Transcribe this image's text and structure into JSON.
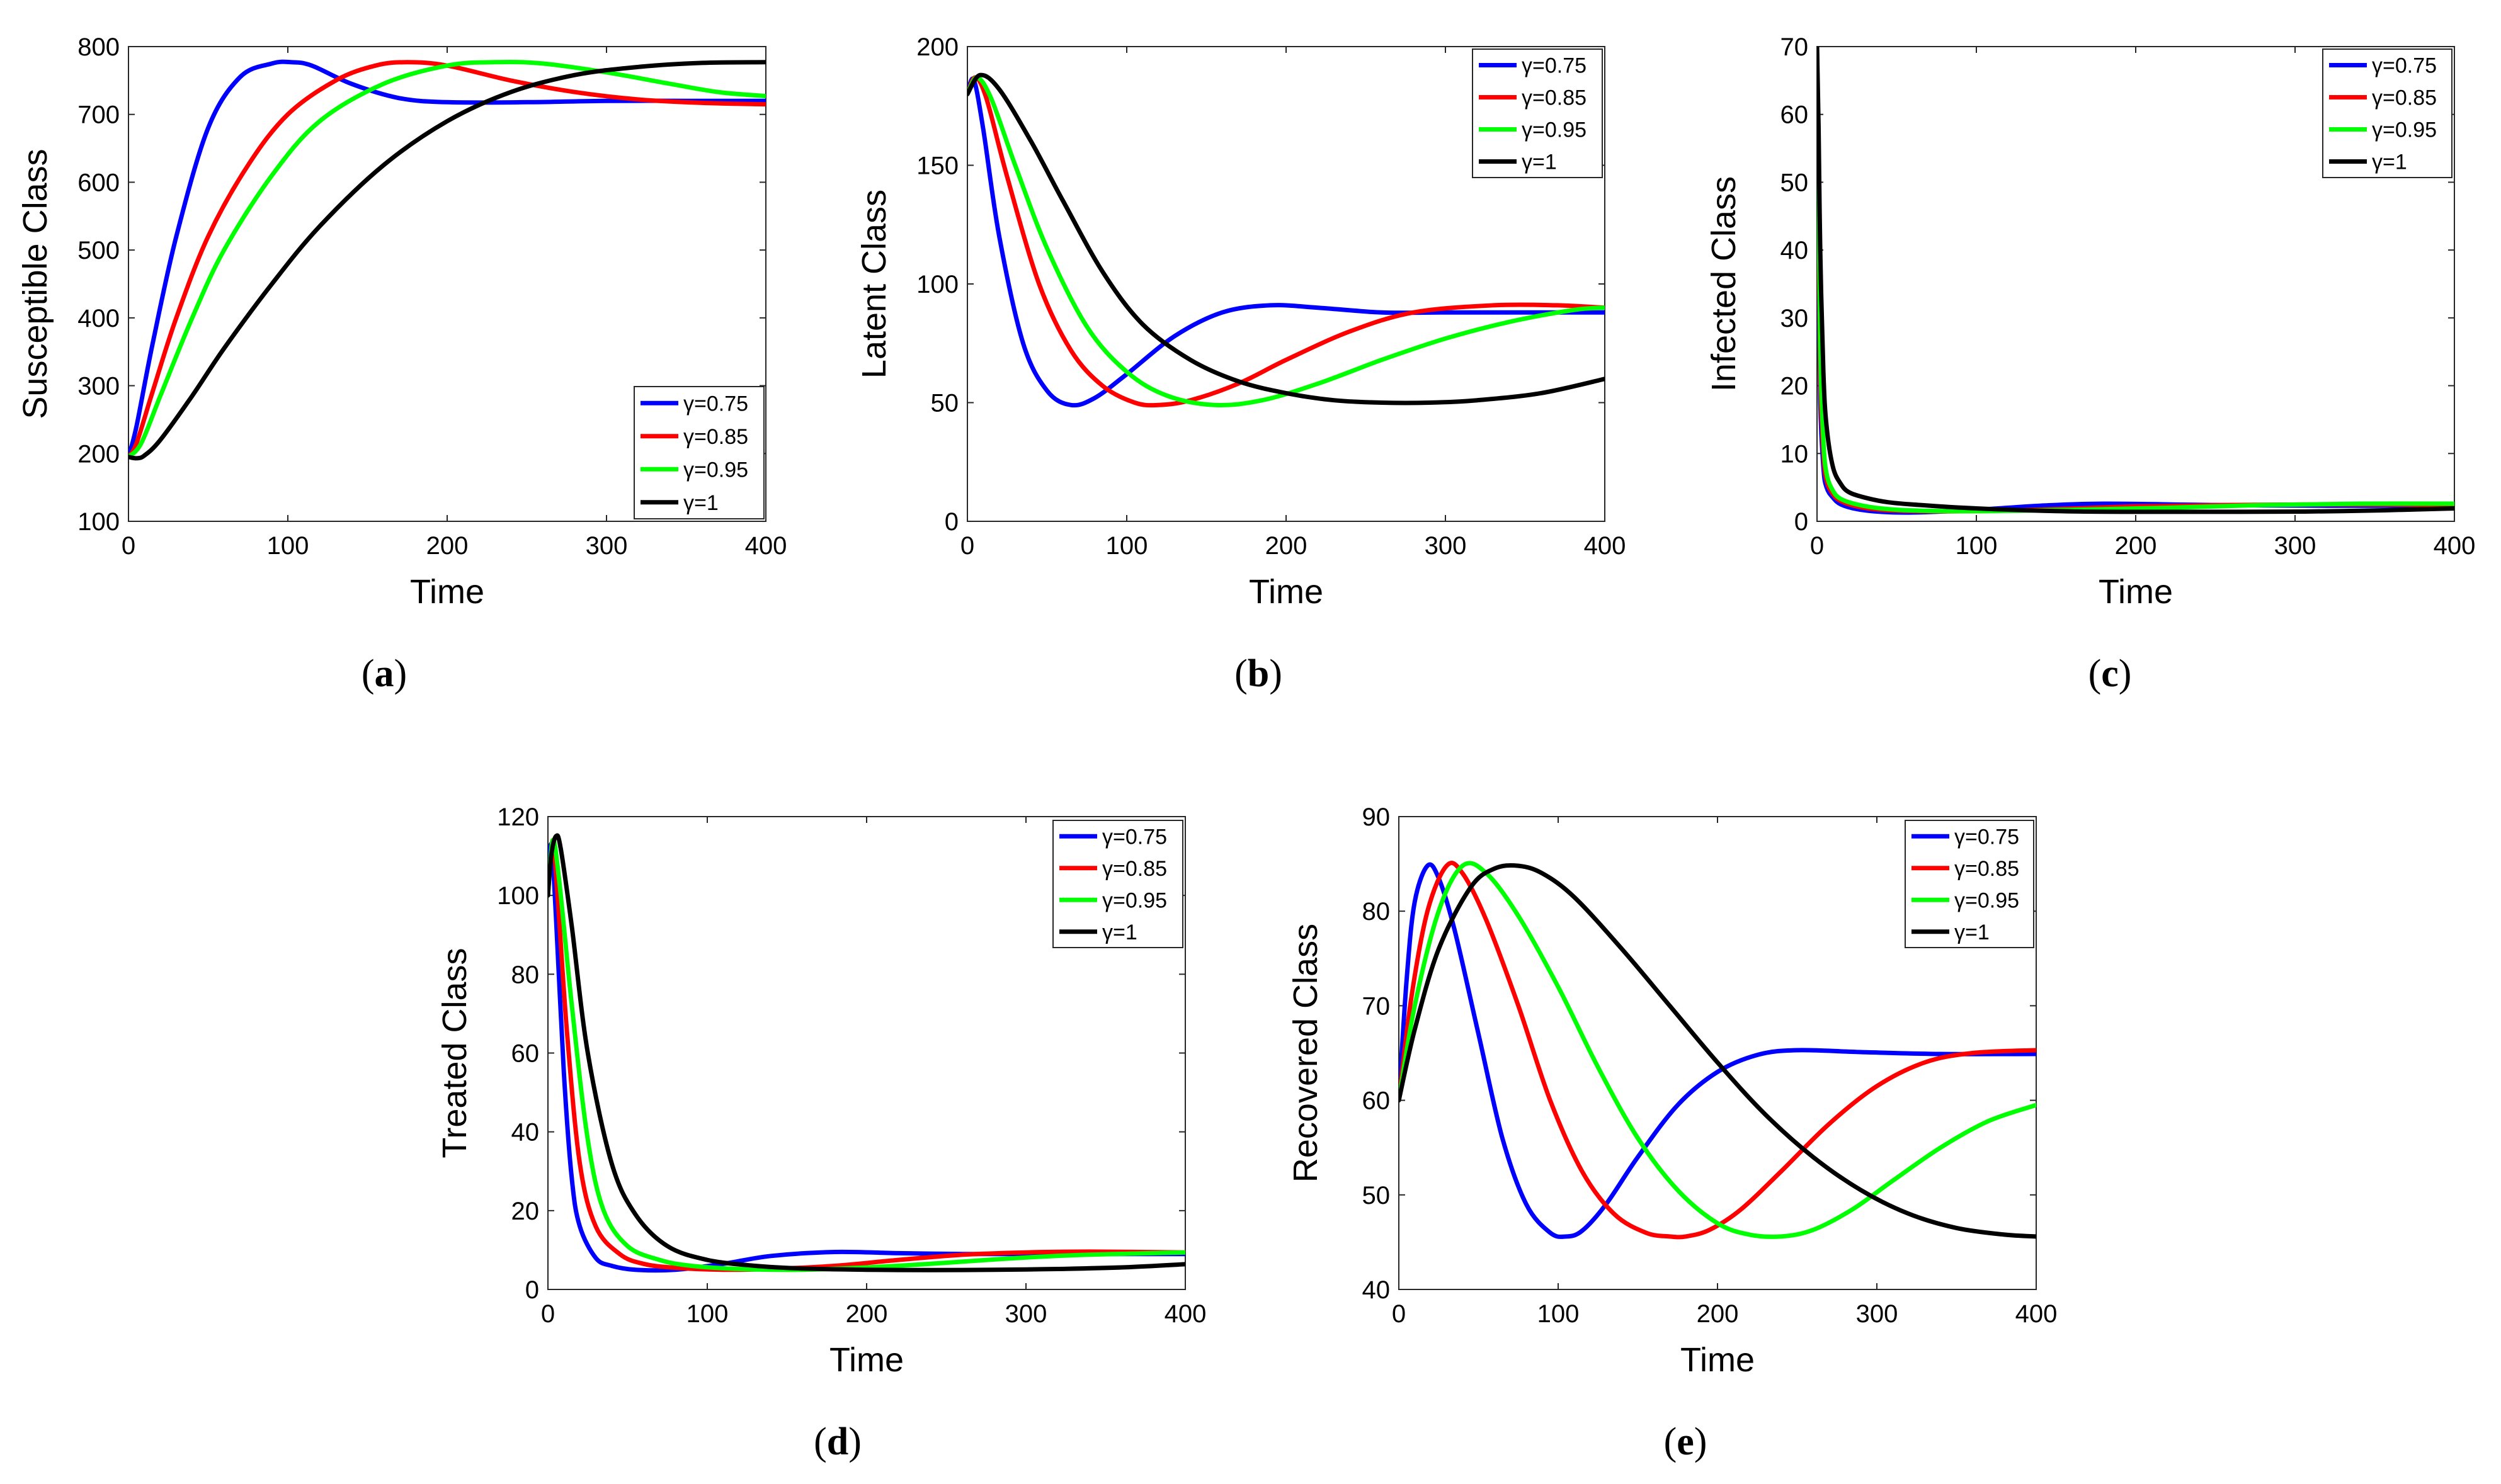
{
  "figure": {
    "panels": [
      "a",
      "b",
      "c",
      "d",
      "e"
    ]
  },
  "chart_data": [
    {
      "id": "a",
      "type": "line",
      "caption_letter": "a",
      "xlabel": "Time",
      "ylabel": "Susceptible Class",
      "xlim": [
        0,
        400
      ],
      "ylim": [
        100,
        800
      ],
      "xticks": [
        0,
        100,
        200,
        300,
        400
      ],
      "yticks": [
        100,
        200,
        300,
        400,
        500,
        600,
        700,
        800
      ],
      "legend_position": "bottom-right",
      "series": [
        {
          "name": "γ=0.75",
          "color": "#0000ff",
          "x": [
            0,
            5,
            15,
            30,
            50,
            70,
            90,
            102,
            115,
            140,
            170,
            200,
            250,
            300,
            350,
            400
          ],
          "y": [
            195,
            240,
            360,
            520,
            680,
            755,
            775,
            777,
            772,
            745,
            724,
            718,
            718,
            720,
            720,
            720
          ]
        },
        {
          "name": "γ=0.85",
          "color": "#ff0000",
          "x": [
            0,
            5,
            15,
            30,
            50,
            75,
            100,
            130,
            155,
            175,
            200,
            240,
            280,
            320,
            360,
            400
          ],
          "y": [
            195,
            215,
            290,
            400,
            520,
            625,
            700,
            750,
            772,
            777,
            772,
            750,
            733,
            722,
            717,
            715
          ]
        },
        {
          "name": "γ=0.95",
          "color": "#00ff00",
          "x": [
            0,
            8,
            20,
            40,
            60,
            90,
            120,
            160,
            200,
            230,
            260,
            300,
            340,
            370,
            400
          ],
          "y": [
            195,
            215,
            285,
            400,
            500,
            610,
            690,
            745,
            772,
            777,
            775,
            762,
            745,
            733,
            727
          ]
        },
        {
          "name": "γ=1",
          "color": "#000000",
          "x": [
            0,
            5,
            10,
            20,
            40,
            60,
            90,
            120,
            160,
            200,
            240,
            280,
            320,
            360,
            400
          ],
          "y": [
            195,
            193,
            197,
            220,
            285,
            355,
            450,
            535,
            625,
            690,
            733,
            758,
            770,
            776,
            777
          ]
        }
      ]
    },
    {
      "id": "b",
      "type": "line",
      "caption_letter": "b",
      "xlabel": "Time",
      "ylabel": "Latent Class",
      "xlim": [
        0,
        400
      ],
      "ylim": [
        0,
        200
      ],
      "xticks": [
        0,
        100,
        200,
        300,
        400
      ],
      "yticks": [
        0,
        50,
        100,
        150,
        200
      ],
      "legend_position": "top-right",
      "series": [
        {
          "name": "γ=0.75",
          "color": "#0000ff",
          "x": [
            0,
            4,
            10,
            20,
            35,
            50,
            65,
            80,
            100,
            130,
            160,
            190,
            220,
            260,
            300,
            340,
            400
          ],
          "y": [
            180,
            186,
            165,
            120,
            75,
            55,
            49,
            52,
            62,
            78,
            88,
            91,
            90,
            88,
            88,
            88,
            88
          ]
        },
        {
          "name": "γ=0.85",
          "color": "#ff0000",
          "x": [
            0,
            5,
            12,
            25,
            45,
            65,
            85,
            105,
            120,
            140,
            170,
            200,
            240,
            280,
            330,
            370,
            400
          ],
          "y": [
            180,
            187,
            178,
            145,
            100,
            72,
            57,
            50,
            49,
            51,
            58,
            68,
            80,
            88,
            91,
            91,
            90
          ]
        },
        {
          "name": "γ=0.95",
          "color": "#00ff00",
          "x": [
            0,
            6,
            15,
            30,
            50,
            75,
            100,
            125,
            155,
            185,
            220,
            260,
            300,
            340,
            380,
            400
          ],
          "y": [
            180,
            187,
            178,
            150,
            115,
            82,
            63,
            53,
            49,
            51,
            58,
            68,
            77,
            84,
            89,
            90
          ]
        },
        {
          "name": "γ=1",
          "color": "#000000",
          "x": [
            0,
            8,
            20,
            40,
            60,
            85,
            110,
            140,
            170,
            200,
            230,
            260,
            290,
            320,
            360,
            400
          ],
          "y": [
            180,
            188,
            182,
            160,
            135,
            105,
            83,
            68,
            59,
            54,
            51,
            50,
            50,
            51,
            54,
            60
          ]
        }
      ]
    },
    {
      "id": "c",
      "type": "line",
      "caption_letter": "c",
      "xlabel": "Time",
      "ylabel": "Infected Class",
      "xlim": [
        0,
        400
      ],
      "ylim": [
        0,
        70
      ],
      "xticks": [
        0,
        100,
        200,
        300,
        400
      ],
      "yticks": [
        0,
        10,
        20,
        30,
        40,
        50,
        60,
        70
      ],
      "legend_position": "top-right",
      "series": [
        {
          "name": "γ=0.75",
          "color": "#0000ff",
          "x": [
            0,
            1,
            2,
            4,
            6,
            10,
            15,
            25,
            40,
            60,
            100,
            140,
            180,
            250,
            320,
            400
          ],
          "y": [
            70,
            40,
            18,
            8,
            5,
            3.5,
            2.5,
            1.8,
            1.4,
            1.3,
            1.7,
            2.3,
            2.6,
            2.4,
            2.3,
            2.3
          ]
        },
        {
          "name": "γ=0.85",
          "color": "#ff0000",
          "x": [
            0,
            1,
            2,
            4,
            6,
            10,
            15,
            25,
            40,
            60,
            100,
            150,
            200,
            260,
            330,
            400
          ],
          "y": [
            70,
            45,
            22,
            10,
            6,
            4,
            3,
            2.2,
            1.7,
            1.5,
            1.5,
            1.8,
            2.2,
            2.4,
            2.5,
            2.4
          ]
        },
        {
          "name": "γ=0.95",
          "color": "#00ff00",
          "x": [
            0,
            1,
            2,
            4,
            6,
            10,
            15,
            25,
            40,
            60,
            100,
            160,
            220,
            280,
            340,
            400
          ],
          "y": [
            70,
            50,
            26,
            12,
            7,
            4.5,
            3.3,
            2.5,
            1.9,
            1.6,
            1.5,
            1.7,
            2.0,
            2.4,
            2.6,
            2.6
          ]
        },
        {
          "name": "γ=1",
          "color": "#000000",
          "x": [
            0,
            1,
            2,
            4,
            6,
            10,
            15,
            20,
            30,
            45,
            65,
            100,
            150,
            200,
            260,
            330,
            400
          ],
          "y": [
            70,
            58,
            40,
            22,
            14,
            8,
            5.5,
            4.3,
            3.5,
            2.8,
            2.4,
            1.9,
            1.5,
            1.4,
            1.4,
            1.5,
            1.9
          ]
        }
      ]
    },
    {
      "id": "d",
      "type": "line",
      "caption_letter": "d",
      "xlabel": "Time",
      "ylabel": "Treated Class",
      "xlim": [
        0,
        400
      ],
      "ylim": [
        0,
        120
      ],
      "xticks": [
        0,
        100,
        200,
        300,
        400
      ],
      "yticks": [
        0,
        20,
        40,
        60,
        80,
        100,
        120
      ],
      "legend_position": "top-right",
      "series": [
        {
          "name": "γ=0.75",
          "color": "#0000ff",
          "x": [
            0,
            2,
            5,
            10,
            15,
            20,
            30,
            40,
            55,
            80,
            110,
            140,
            180,
            220,
            260,
            300,
            400
          ],
          "y": [
            100,
            113,
            95,
            55,
            28,
            16,
            8,
            6,
            5,
            5,
            6.5,
            8.5,
            9.5,
            9.2,
            9,
            9,
            9
          ]
        },
        {
          "name": "γ=0.85",
          "color": "#ff0000",
          "x": [
            0,
            3,
            6,
            12,
            20,
            30,
            45,
            60,
            80,
            110,
            140,
            180,
            220,
            260,
            300,
            340,
            400
          ],
          "y": [
            100,
            114,
            100,
            65,
            32,
            16,
            9,
            6.5,
            5.5,
            5,
            5.2,
            6,
            7.5,
            8.8,
            9.4,
            9.6,
            9.4
          ]
        },
        {
          "name": "γ=0.95",
          "color": "#00ff00",
          "x": [
            0,
            3,
            7,
            15,
            25,
            35,
            50,
            70,
            90,
            120,
            160,
            200,
            240,
            280,
            330,
            400
          ],
          "y": [
            100,
            114,
            104,
            72,
            38,
            20,
            11,
            7.5,
            6,
            5.2,
            5,
            5.6,
            6.5,
            7.6,
            8.7,
            9.4
          ]
        },
        {
          "name": "γ=1",
          "color": "#000000",
          "x": [
            0,
            2,
            5,
            8,
            15,
            25,
            40,
            55,
            75,
            100,
            130,
            160,
            200,
            240,
            280,
            320,
            360,
            400
          ],
          "y": [
            100,
            110,
            115,
            112,
            92,
            60,
            32,
            19,
            11,
            7.5,
            6,
            5.3,
            5,
            4.9,
            5,
            5.2,
            5.6,
            6.4
          ]
        }
      ]
    },
    {
      "id": "e",
      "type": "line",
      "caption_letter": "e",
      "xlabel": "Time",
      "ylabel": "Recovered Class",
      "xlim": [
        0,
        400
      ],
      "ylim": [
        40,
        90
      ],
      "xticks": [
        0,
        100,
        200,
        300,
        400
      ],
      "yticks": [
        40,
        50,
        60,
        70,
        80,
        90
      ],
      "legend_position": "top-right",
      "series": [
        {
          "name": "γ=0.75",
          "color": "#0000ff",
          "x": [
            0,
            5,
            10,
            18,
            25,
            35,
            50,
            65,
            80,
            95,
            105,
            115,
            130,
            150,
            175,
            200,
            225,
            250,
            290,
            340,
            400
          ],
          "y": [
            60,
            73,
            81,
            84.8,
            83.5,
            78,
            67,
            56,
            49,
            46,
            45.6,
            46.2,
            49,
            54,
            59.5,
            63,
            64.8,
            65.3,
            65.1,
            64.9,
            64.9
          ]
        },
        {
          "name": "γ=0.85",
          "color": "#ff0000",
          "x": [
            0,
            8,
            18,
            30,
            40,
            55,
            75,
            95,
            115,
            135,
            155,
            170,
            180,
            195,
            215,
            240,
            270,
            300,
            330,
            360,
            400
          ],
          "y": [
            60,
            71,
            80,
            84.8,
            84,
            79,
            70,
            60,
            52.5,
            48,
            46,
            45.6,
            45.6,
            46.3,
            48.5,
            52.5,
            57.5,
            61.5,
            64,
            65,
            65.3
          ]
        },
        {
          "name": "γ=0.95",
          "color": "#00ff00",
          "x": [
            0,
            10,
            25,
            40,
            55,
            75,
            100,
            125,
            150,
            175,
            200,
            220,
            240,
            260,
            285,
            310,
            340,
            370,
            400
          ],
          "y": [
            60,
            70,
            80,
            84.8,
            84,
            79.5,
            72,
            63.5,
            56,
            50.5,
            47,
            45.8,
            45.6,
            46.3,
            48.5,
            51.5,
            55,
            57.8,
            59.5
          ]
        },
        {
          "name": "γ=1",
          "color": "#000000",
          "x": [
            0,
            10,
            25,
            45,
            60,
            75,
            90,
            110,
            140,
            170,
            200,
            230,
            260,
            290,
            320,
            350,
            380,
            400
          ],
          "y": [
            60,
            67.5,
            76,
            82.5,
            84.5,
            84.8,
            84,
            81.5,
            76,
            70,
            64,
            58.5,
            54,
            50.5,
            48,
            46.5,
            45.8,
            45.6
          ]
        }
      ]
    }
  ]
}
